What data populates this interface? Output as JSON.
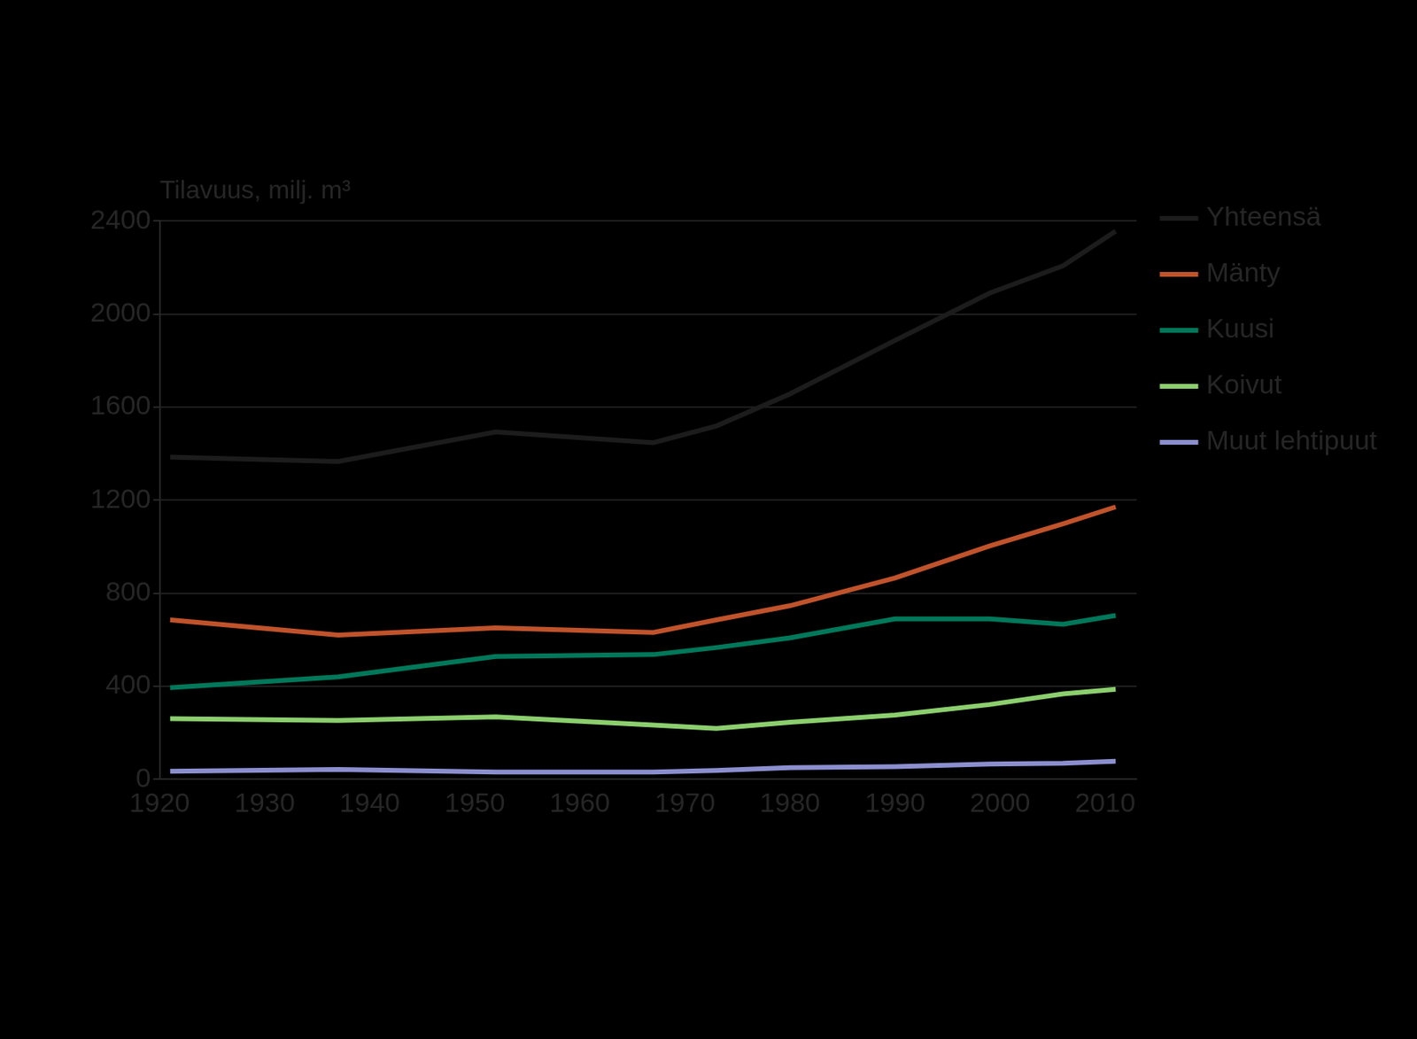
{
  "chart_data": {
    "type": "line",
    "title": "Tilavuus, milj. m³",
    "x": [
      1921,
      1937,
      1952,
      1967,
      1973,
      1980,
      1990,
      1999,
      2006,
      2011
    ],
    "series": [
      {
        "name": "Yhteensä",
        "color": "#1c1c1c",
        "values": [
          1385,
          1366,
          1493,
          1447,
          1519,
          1657,
          1887,
          2090,
          2208,
          2357
        ]
      },
      {
        "name": "Mänty",
        "color": "#c0532b",
        "values": [
          685,
          620,
          651,
          631,
          685,
          746,
          865,
          1003,
          1098,
          1171
        ]
      },
      {
        "name": "Kuusi",
        "color": "#00785a",
        "values": [
          394,
          440,
          528,
          536,
          566,
          608,
          689,
          689,
          666,
          704
        ]
      },
      {
        "name": "Koivut",
        "color": "#8ccf6e",
        "values": [
          260,
          253,
          268,
          233,
          218,
          245,
          276,
          321,
          367,
          387
        ]
      },
      {
        "name": "Muut lehtipuut",
        "color": "#8c8fcf",
        "values": [
          34,
          42,
          31,
          31,
          38,
          50,
          54,
          65,
          69,
          77
        ]
      }
    ],
    "xlim": [
      1920,
      2013
    ],
    "xticks": [
      1920,
      1930,
      1940,
      1950,
      1960,
      1970,
      1980,
      1990,
      2000,
      2010
    ],
    "ylim": [
      0,
      2400
    ],
    "yticks": [
      0,
      400,
      800,
      1200,
      1600,
      2000,
      2400
    ],
    "grid": true,
    "legend": "right"
  }
}
